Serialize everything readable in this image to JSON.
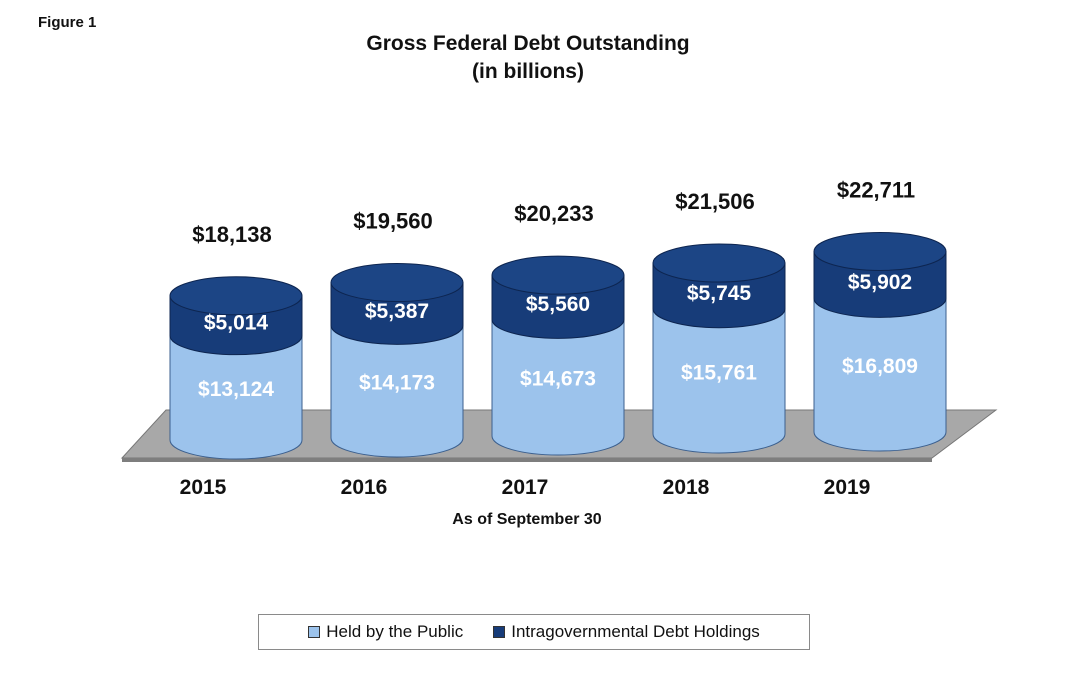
{
  "figure_label": "Figure 1",
  "chart_data": {
    "type": "bar",
    "stacked": true,
    "three_d": true,
    "title": "Gross Federal Debt Outstanding",
    "subtitle": "(in billions)",
    "xlabel": "As of September 30",
    "ylabel": "",
    "categories": [
      "2015",
      "2016",
      "2017",
      "2018",
      "2019"
    ],
    "series": [
      {
        "name": "Held by the Public",
        "values": [
          13124,
          14173,
          14673,
          15761,
          16809
        ],
        "labels": [
          "$13,124",
          "$14,173",
          "$14,673",
          "$15,761",
          "$16,809"
        ],
        "color": "#9cc3ec"
      },
      {
        "name": "Intragovernmental Debt Holdings",
        "values": [
          5014,
          5387,
          5560,
          5745,
          5902
        ],
        "labels": [
          "$5,014",
          "$5,387",
          "$5,560",
          "$5,745",
          "$5,902"
        ],
        "color": "#173c79"
      }
    ],
    "totals": [
      18138,
      19560,
      20233,
      21506,
      22711
    ],
    "total_labels": [
      "$18,138",
      "$19,560",
      "$20,233",
      "$21,506",
      "$22,711"
    ],
    "grid": false,
    "legend_position": "bottom"
  },
  "legend": {
    "public_label": "Held by the Public",
    "intra_label": "Intragovernmental Debt Holdings"
  }
}
